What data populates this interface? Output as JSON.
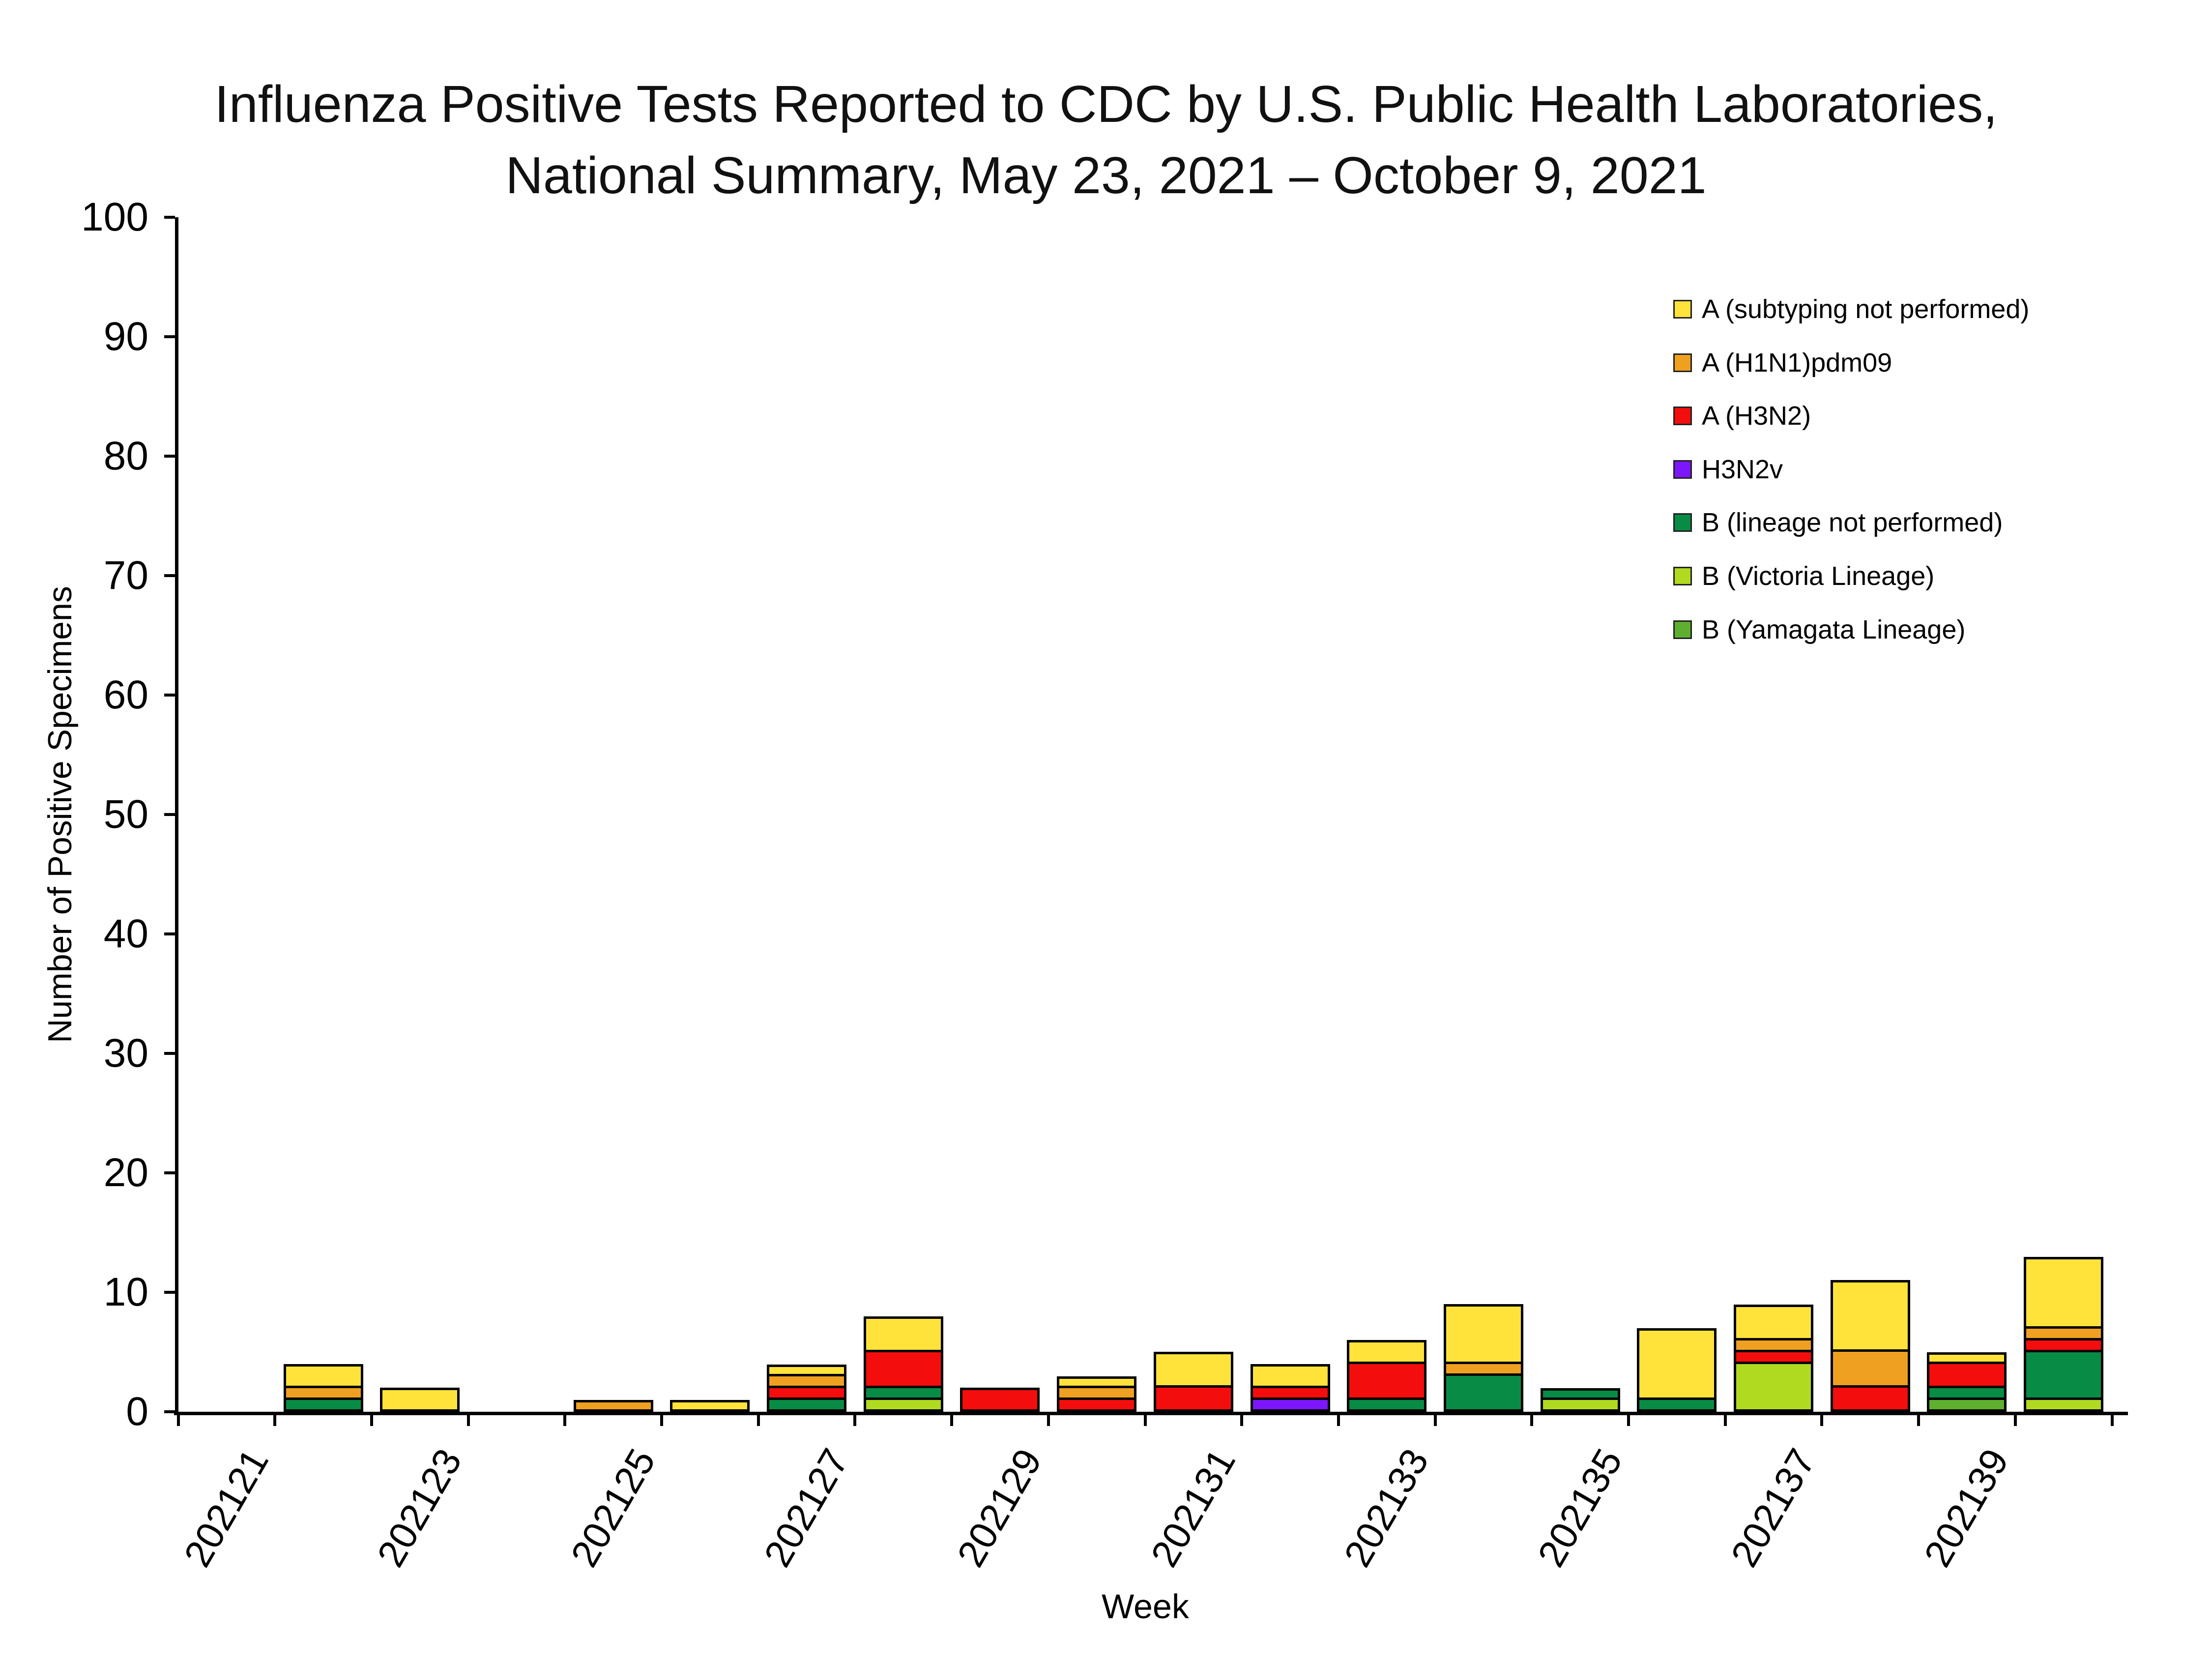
{
  "title_lines": {
    "line1": "Influenza Positive Tests Reported to CDC by U.S. Public Health Laboratories,",
    "line2": "National Summary, May 23, 2021 – October 9, 2021"
  },
  "axes": {
    "x_label": "Week",
    "y_label": "Number of Positive Specimens"
  },
  "chart_data": {
    "type": "bar",
    "stacked": true,
    "title": "Influenza Positive Tests Reported to CDC by U.S. Public Health Laboratories, National Summary, May 23, 2021 – October 9, 2021",
    "xlabel": "Week",
    "ylabel": "Number of Positive Specimens",
    "ylim": [
      0,
      100
    ],
    "y_ticks": [
      0,
      10,
      20,
      30,
      40,
      50,
      60,
      70,
      80,
      90,
      100
    ],
    "grid": false,
    "legend_position": "upper right",
    "categories": [
      "202121",
      "202122",
      "202123",
      "202124",
      "202125",
      "202126",
      "202127",
      "202128",
      "202129",
      "202130",
      "202131",
      "202132",
      "202133",
      "202134",
      "202135",
      "202136",
      "202137",
      "202138",
      "202139",
      "202140"
    ],
    "x_tick_labels_shown": [
      "202121",
      "202123",
      "202125",
      "202127",
      "202129",
      "202131",
      "202133",
      "202135",
      "202137",
      "202139"
    ],
    "stack_note": "series listed in legend order (drawn top-of-stack first); stacking bottom-to-top is the reverse of this list",
    "series": [
      {
        "name": "A (subtyping not performed)",
        "color": "#FFE33B",
        "values": [
          0,
          2,
          2,
          0,
          0,
          1,
          1,
          3,
          0,
          1,
          3,
          2,
          2,
          5,
          0,
          6,
          3,
          6,
          1,
          6
        ]
      },
      {
        "name": "A (H1N1)pdm09",
        "color": "#EFA021",
        "values": [
          0,
          1,
          0,
          0,
          1,
          0,
          1,
          0,
          0,
          1,
          0,
          0,
          0,
          1,
          0,
          0,
          1,
          3,
          0,
          1
        ]
      },
      {
        "name": "A (H3N2)",
        "color": "#F40D0D",
        "values": [
          0,
          0,
          0,
          0,
          0,
          0,
          1,
          3,
          2,
          1,
          2,
          1,
          3,
          0,
          0,
          0,
          1,
          2,
          2,
          1
        ]
      },
      {
        "name": "H3N2v",
        "color": "#7D17FB",
        "values": [
          0,
          0,
          0,
          0,
          0,
          0,
          0,
          0,
          0,
          0,
          0,
          1,
          0,
          0,
          0,
          0,
          0,
          0,
          0,
          0
        ]
      },
      {
        "name": "B (lineage not performed)",
        "color": "#088B45",
        "values": [
          0,
          1,
          0,
          0,
          0,
          0,
          1,
          1,
          0,
          0,
          0,
          0,
          1,
          3,
          1,
          1,
          0,
          0,
          1,
          4
        ]
      },
      {
        "name": "B (Victoria Lineage)",
        "color": "#B0DA1F",
        "values": [
          0,
          0,
          0,
          0,
          0,
          0,
          0,
          1,
          0,
          0,
          0,
          0,
          0,
          0,
          1,
          0,
          4,
          0,
          0,
          1
        ]
      },
      {
        "name": "B (Yamagata Lineage)",
        "color": "#5FAF2F",
        "values": [
          0,
          0,
          0,
          0,
          0,
          0,
          0,
          0,
          0,
          0,
          0,
          0,
          0,
          0,
          0,
          0,
          0,
          0,
          1,
          0
        ]
      }
    ],
    "totals": [
      0,
      4,
      2,
      0,
      1,
      1,
      4,
      8,
      2,
      3,
      5,
      4,
      6,
      9,
      2,
      7,
      9,
      11,
      5,
      13
    ]
  }
}
